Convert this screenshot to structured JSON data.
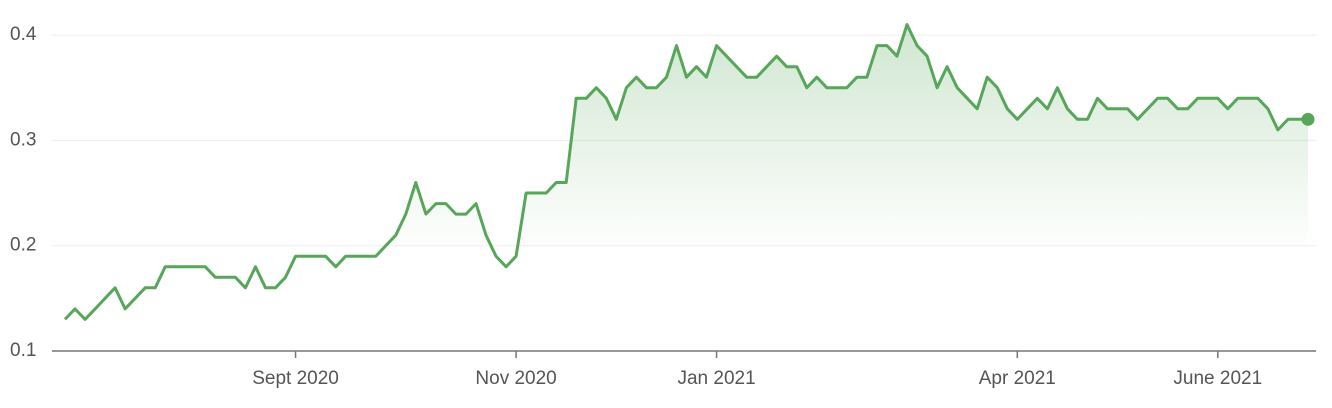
{
  "chart_data": {
    "type": "line",
    "categories": [
      null,
      null,
      null,
      null,
      null,
      null,
      null,
      null,
      null,
      null,
      null,
      null,
      null,
      null,
      null,
      null,
      null,
      null,
      null,
      null,
      null,
      null,
      null,
      "Sept 2020",
      null,
      null,
      null,
      null,
      null,
      null,
      null,
      null,
      null,
      null,
      null,
      null,
      null,
      null,
      null,
      null,
      null,
      null,
      null,
      null,
      null,
      "Nov 2020",
      null,
      null,
      null,
      null,
      null,
      null,
      null,
      null,
      null,
      null,
      null,
      null,
      null,
      null,
      null,
      null,
      null,
      null,
      null,
      "Jan 2021",
      null,
      null,
      null,
      null,
      null,
      null,
      null,
      null,
      null,
      null,
      null,
      null,
      null,
      null,
      null,
      null,
      null,
      null,
      null,
      null,
      null,
      null,
      null,
      null,
      null,
      null,
      null,
      null,
      null,
      "Apr 2021",
      null,
      null,
      null,
      null,
      null,
      null,
      null,
      null,
      null,
      null,
      null,
      null,
      null,
      null,
      null,
      null,
      null,
      null,
      null,
      "June 2021",
      null,
      null,
      null,
      null,
      null,
      null,
      null,
      null,
      null
    ],
    "series": [
      {
        "color": "#57a65a",
        "values": [
          0.13,
          0.14,
          0.13,
          0.14,
          0.15,
          0.16,
          0.14,
          0.15,
          0.16,
          0.16,
          0.18,
          0.18,
          0.18,
          0.18,
          0.18,
          0.17,
          0.17,
          0.17,
          0.16,
          0.18,
          0.16,
          0.16,
          0.17,
          0.19,
          0.19,
          0.19,
          0.19,
          0.18,
          0.19,
          0.19,
          0.19,
          0.19,
          0.2,
          0.21,
          0.23,
          0.26,
          0.23,
          0.24,
          0.24,
          0.23,
          0.23,
          0.24,
          0.21,
          0.19,
          0.18,
          0.19,
          0.25,
          0.25,
          0.25,
          0.26,
          0.26,
          0.34,
          0.34,
          0.35,
          0.34,
          0.32,
          0.35,
          0.36,
          0.35,
          0.35,
          0.36,
          0.39,
          0.36,
          0.37,
          0.36,
          0.39,
          0.38,
          0.37,
          0.36,
          0.36,
          0.37,
          0.38,
          0.37,
          0.37,
          0.35,
          0.36,
          0.35,
          0.35,
          0.35,
          0.36,
          0.36,
          0.39,
          0.39,
          0.38,
          0.41,
          0.39,
          0.38,
          0.35,
          0.37,
          0.35,
          0.34,
          0.33,
          0.36,
          0.35,
          0.33,
          0.32,
          0.33,
          0.34,
          0.33,
          0.35,
          0.33,
          0.32,
          0.32,
          0.34,
          0.33,
          0.33,
          0.33,
          0.32,
          0.33,
          0.34,
          0.34,
          0.33,
          0.33,
          0.34,
          0.34,
          0.34,
          0.33,
          0.34,
          0.34,
          0.34,
          0.33,
          0.31,
          0.32,
          0.32,
          0.32
        ]
      }
    ],
    "ylim": [
      0.1,
      0.415
    ],
    "yticks": [
      0.1,
      0.2,
      0.3,
      0.4
    ],
    "grid": true
  }
}
